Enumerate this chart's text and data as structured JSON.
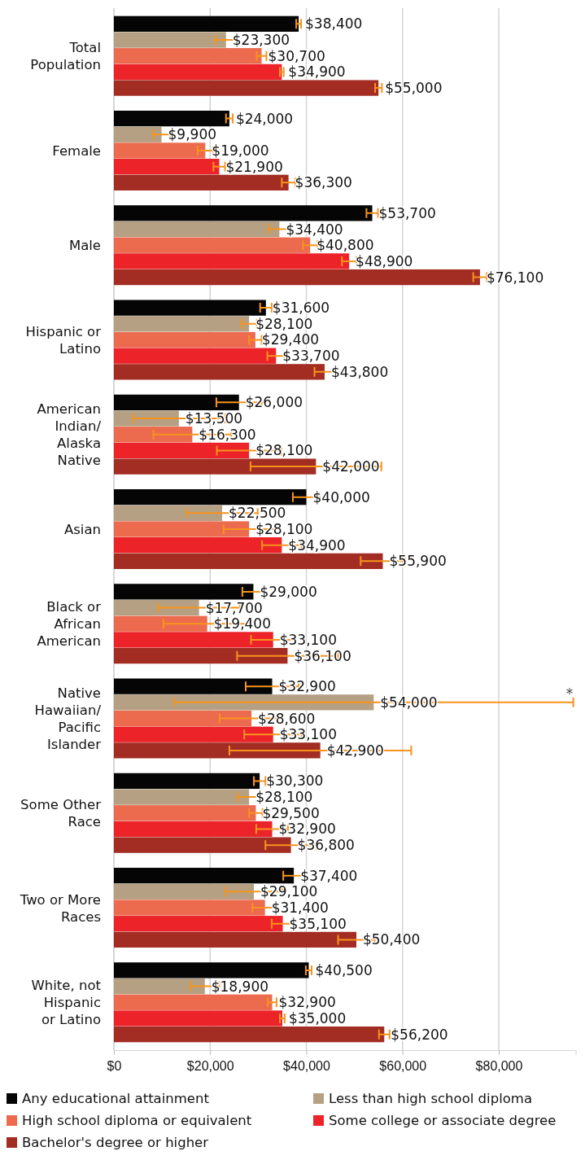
{
  "chart_data": {
    "type": "bar",
    "orientation": "horizontal",
    "categories": [
      "Total\nPopulation",
      "Female",
      "Male",
      "Hispanic or\nLatino",
      "American\nIndian/\nAlaska\nNative",
      "Asian",
      "Black or\nAfrican\nAmerican",
      "Native\nHawaiian/\nPacific\nIslander",
      "Some Other\nRace",
      "Two or More\nRaces",
      "White, not\nHispanic\nor Latino"
    ],
    "series": [
      {
        "name": "Any educational attainment",
        "color": "#050505",
        "values": [
          38400,
          24000,
          53700,
          31600,
          26000,
          40000,
          29000,
          32900,
          30300,
          37400,
          40500
        ],
        "errors": [
          500,
          700,
          1200,
          1200,
          4700,
          2800,
          2300,
          5500,
          1200,
          2200,
          600
        ],
        "value_labels": [
          "$38,400",
          "$24,000",
          "$53,700",
          "$31,600",
          "$26,000",
          "$40,000",
          "$29,000",
          "$32,900",
          "$30,300",
          "$37,400",
          "$40,500"
        ]
      },
      {
        "name": "Less than high school diploma",
        "color": "#b5a083",
        "values": [
          23300,
          9900,
          34400,
          28100,
          13500,
          22500,
          17700,
          54000,
          28100,
          29100,
          18900
        ],
        "errors": [
          2300,
          1800,
          2300,
          1600,
          9600,
          7400,
          8500,
          41500,
          2400,
          5900,
          3000
        ],
        "value_labels": [
          "$23,300",
          "$9,900",
          "$34,400",
          "$28,100",
          "$13,500",
          "$22,500",
          "$17,700",
          "$54,000",
          "$28,100",
          "$29,100",
          "$18,900"
        ]
      },
      {
        "name": "High school diploma or equivalent",
        "color": "#ec6a4e",
        "values": [
          30700,
          19000,
          40800,
          29400,
          16300,
          28100,
          19400,
          28600,
          29500,
          31400,
          32900
        ],
        "errors": [
          1000,
          1600,
          1500,
          1300,
          8100,
          5300,
          9100,
          6600,
          1400,
          2600,
          900
        ],
        "value_labels": [
          "$30,700",
          "$19,000",
          "$40,800",
          "$29,400",
          "$16,300",
          "$28,100",
          "$19,400",
          "$28,600",
          "$29,500",
          "$31,400",
          "$32,900"
        ]
      },
      {
        "name": "Some college or associate degree",
        "color": "#ec2329",
        "values": [
          34900,
          21900,
          48900,
          33700,
          28100,
          34900,
          33100,
          33100,
          32900,
          35100,
          35000
        ],
        "errors": [
          400,
          1200,
          1500,
          1800,
          6700,
          4100,
          4600,
          6000,
          3300,
          2300,
          500
        ],
        "value_labels": [
          "$34,900",
          "$21,900",
          "$48,900",
          "$33,700",
          "$28,100",
          "$34,900",
          "$33,100",
          "$33,100",
          "$32,900",
          "$35,100",
          "$35,000"
        ]
      },
      {
        "name": "Bachelor's degree or higher",
        "color": "#a32d23",
        "values": [
          55000,
          36300,
          76100,
          43800,
          42000,
          55900,
          36100,
          42900,
          36800,
          50400,
          56200
        ],
        "errors": [
          700,
          1400,
          1400,
          2100,
          13600,
          4600,
          10500,
          18900,
          5300,
          3800,
          1100
        ],
        "value_labels": [
          "$55,000",
          "$36,300",
          "$76,100",
          "$43,800",
          "$42,000",
          "$55,900",
          "$36,100",
          "$42,900",
          "$36,800",
          "$50,400",
          "$56,200"
        ]
      }
    ],
    "xlim": [
      0,
      96000
    ],
    "xticks": [
      {
        "value": 0,
        "label": "$0"
      },
      {
        "value": 20000,
        "label": "$20,000"
      },
      {
        "value": 40000,
        "label": "$40,000"
      },
      {
        "value": 60000,
        "label": "$60,000"
      },
      {
        "value": 80000,
        "label": "$80,000"
      }
    ],
    "grid": "x",
    "legend": "bottom",
    "annotations": [
      "*"
    ]
  }
}
